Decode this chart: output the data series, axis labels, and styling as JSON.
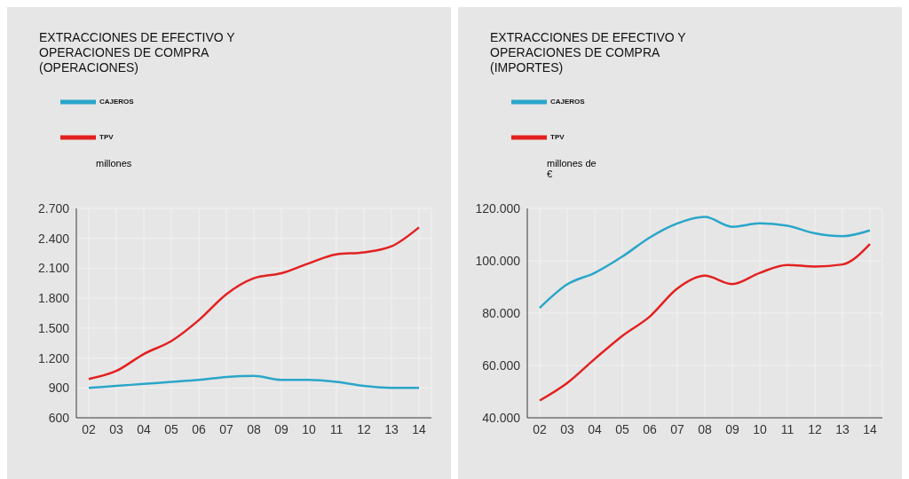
{
  "chart_data": [
    {
      "type": "line",
      "title": "EXTRACCIONES DE EFECTIVO Y OPERACIONES DE COMPRA (OPERACIONES)",
      "ylabel": "millones",
      "categories": [
        "02",
        "03",
        "04",
        "05",
        "06",
        "07",
        "08",
        "09",
        "10",
        "11",
        "12",
        "13",
        "14"
      ],
      "series": [
        {
          "name": "CAJEROS",
          "color": "#2aa6c9",
          "values": [
            900,
            920,
            940,
            960,
            980,
            1010,
            1020,
            980,
            980,
            960,
            920,
            900,
            900
          ]
        },
        {
          "name": "TPV",
          "color": "#e32020",
          "values": [
            990,
            1070,
            1240,
            1370,
            1580,
            1840,
            2000,
            2050,
            2150,
            2240,
            2260,
            2320,
            2510
          ]
        }
      ],
      "ylim": [
        600,
        2700
      ],
      "yticks": [
        600,
        900,
        {
          "value": 1200,
          "label": "1.200"
        },
        {
          "value": 1500,
          "label": "1.500"
        },
        {
          "value": 1800,
          "label": "1.800"
        },
        {
          "value": 2100,
          "label": "2.100"
        },
        {
          "value": 2400,
          "label": "2.400"
        },
        {
          "value": 2700,
          "label": "2.700"
        }
      ],
      "grid": true,
      "legend": "top left",
      "marker": "none"
    },
    {
      "type": "line",
      "title": "EXTRACCIONES DE EFECTIVO Y OPERACIONES DE COMPRA (IMPORTES)",
      "ylabel": "millones de €",
      "categories": [
        "02",
        "03",
        "04",
        "05",
        "06",
        "07",
        "08",
        "09",
        "10",
        "11",
        "12",
        "13",
        "14"
      ],
      "series": [
        {
          "name": "CAJEROS",
          "color": "#2aa6c9",
          "values": [
            82000,
            91000,
            95400,
            101600,
            108900,
            114300,
            116800,
            113000,
            114300,
            113400,
            110500,
            109400,
            111600
          ]
        },
        {
          "name": "TPV",
          "color": "#e32020",
          "values": [
            46600,
            53300,
            62500,
            71300,
            78700,
            89400,
            94300,
            91100,
            95400,
            98400,
            97800,
            98600,
            106400
          ]
        }
      ],
      "ylim": [
        40000,
        120000
      ],
      "yticks": [
        {
          "value": 40000,
          "label": "40.000"
        },
        {
          "value": 60000,
          "label": "60.000"
        },
        {
          "value": 80000,
          "label": "80.000"
        },
        {
          "value": 100000,
          "label": "100.000"
        },
        {
          "value": 120000,
          "label": "120.000"
        }
      ],
      "grid": true,
      "legend": "top left",
      "marker": "none"
    }
  ]
}
